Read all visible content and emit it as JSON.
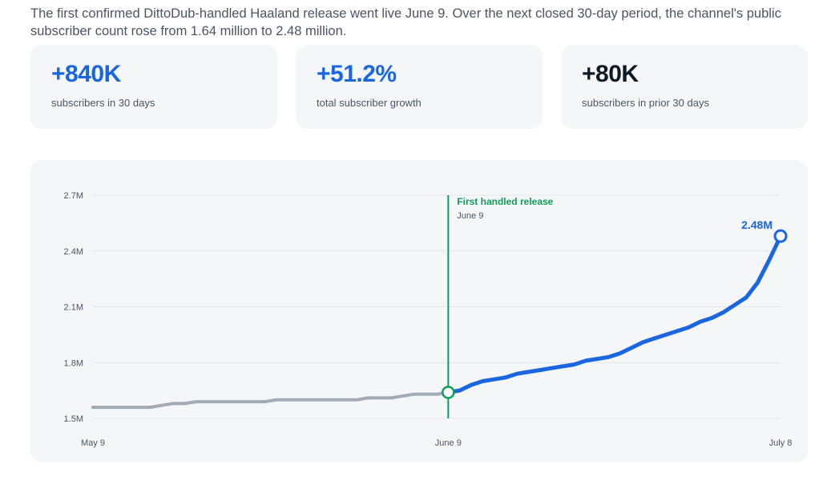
{
  "intro": "The first confirmed DittoDub-handled Haaland release went live June 9. Over the next closed 30-day period, the channel's public subscriber count rose from 1.64 million to 2.48 million.",
  "stats": [
    {
      "value": "+840K",
      "label": "subscribers in 30 days",
      "color": "#1a66e0"
    },
    {
      "value": "+51.2%",
      "label": "total subscriber growth",
      "color": "#1a66e0"
    },
    {
      "value": "+80K",
      "label": "subscribers in prior 30 days",
      "color": "#111827"
    }
  ],
  "chart_data": {
    "type": "line",
    "title": "",
    "xlabel": "",
    "ylabel": "",
    "ylim": [
      1.5,
      2.7
    ],
    "yticks": [
      {
        "value": 1.5,
        "label": "1.5M"
      },
      {
        "value": 1.8,
        "label": "1.8M"
      },
      {
        "value": 2.1,
        "label": "2.1M"
      },
      {
        "value": 2.4,
        "label": "2.4M"
      },
      {
        "value": 2.7,
        "label": "2.7M"
      }
    ],
    "xlim": [
      0,
      60
    ],
    "xticks": [
      {
        "value": 0,
        "label": "May 9"
      },
      {
        "value": 31,
        "label": "June 9"
      },
      {
        "value": 60,
        "label": "July 8"
      }
    ],
    "grid": true,
    "series": [
      {
        "color": "#a3aab7",
        "points": [
          [
            0,
            1.56
          ],
          [
            3,
            1.56
          ],
          [
            5,
            1.56
          ],
          [
            6,
            1.57
          ],
          [
            7,
            1.58
          ],
          [
            8,
            1.58
          ],
          [
            9,
            1.59
          ],
          [
            10,
            1.59
          ],
          [
            11,
            1.59
          ],
          [
            12,
            1.59
          ],
          [
            13,
            1.59
          ],
          [
            14,
            1.59
          ],
          [
            15,
            1.59
          ],
          [
            16,
            1.6
          ],
          [
            17,
            1.6
          ],
          [
            18,
            1.6
          ],
          [
            19,
            1.6
          ],
          [
            20,
            1.6
          ],
          [
            21,
            1.6
          ],
          [
            22,
            1.6
          ],
          [
            23,
            1.6
          ],
          [
            24,
            1.61
          ],
          [
            25,
            1.61
          ],
          [
            26,
            1.61
          ],
          [
            27,
            1.62
          ],
          [
            28,
            1.63
          ],
          [
            29,
            1.63
          ],
          [
            30,
            1.63
          ],
          [
            31,
            1.64
          ]
        ]
      },
      {
        "color": "#1a66e0",
        "points": [
          [
            31,
            1.64
          ],
          [
            32,
            1.65
          ],
          [
            33,
            1.68
          ],
          [
            34,
            1.7
          ],
          [
            35,
            1.71
          ],
          [
            36,
            1.72
          ],
          [
            37,
            1.74
          ],
          [
            38,
            1.75
          ],
          [
            39,
            1.76
          ],
          [
            40,
            1.77
          ],
          [
            41,
            1.78
          ],
          [
            42,
            1.79
          ],
          [
            43,
            1.81
          ],
          [
            44,
            1.82
          ],
          [
            45,
            1.83
          ],
          [
            46,
            1.85
          ],
          [
            47,
            1.88
          ],
          [
            48,
            1.91
          ],
          [
            49,
            1.93
          ],
          [
            50,
            1.95
          ],
          [
            51,
            1.97
          ],
          [
            52,
            1.99
          ],
          [
            53,
            2.02
          ],
          [
            54,
            2.04
          ],
          [
            55,
            2.07
          ],
          [
            56,
            2.11
          ],
          [
            57,
            2.15
          ],
          [
            58,
            2.23
          ],
          [
            59,
            2.35
          ],
          [
            60,
            2.48
          ]
        ]
      }
    ],
    "marker": {
      "x": 31,
      "title": "First handled release",
      "subtitle": "June 9",
      "color": "#0f9d58"
    },
    "end_label": "2.48M"
  }
}
